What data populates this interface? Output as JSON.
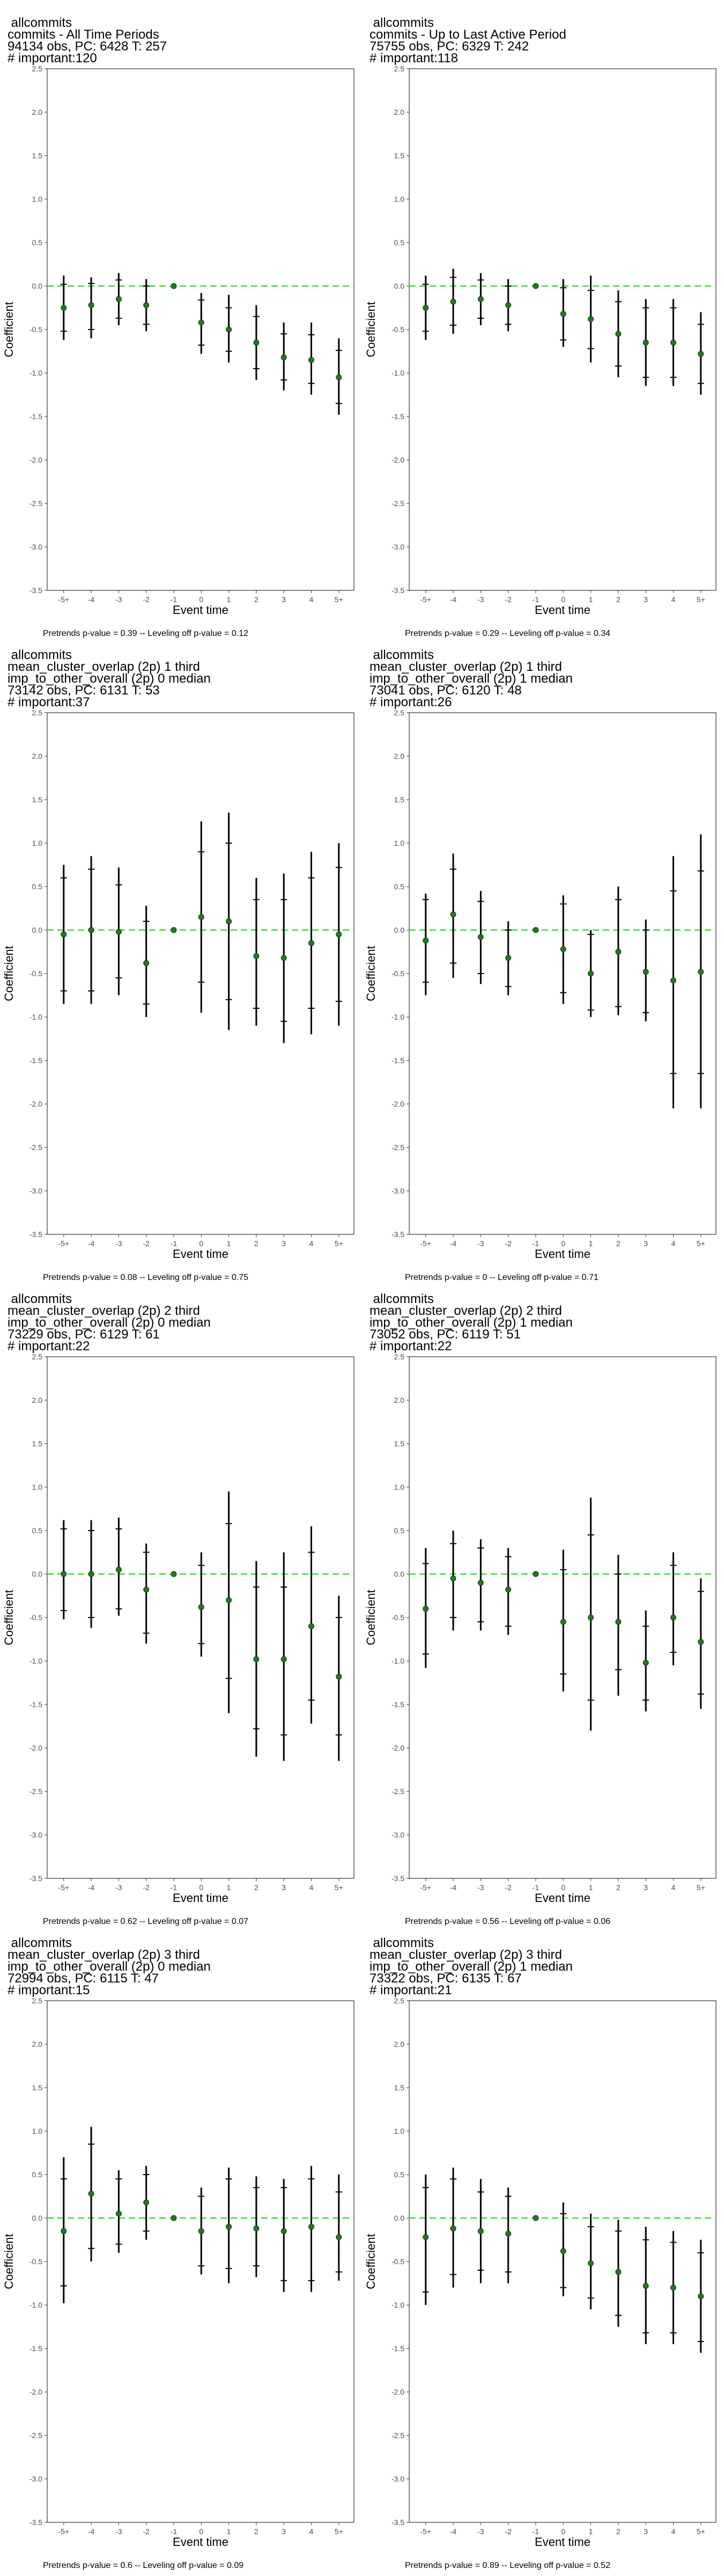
{
  "chart_data": [
    {
      "type": "scatter",
      "title_lines": [
        "allcommits",
        "commits - All Time Periods",
        "94134 obs, PC: 6428 T: 257",
        "# important:120"
      ],
      "xlabel": "Event time",
      "ylabel": "Coefficient",
      "categories": [
        "-5+",
        "-4",
        "-3",
        "-2",
        "-1",
        "0",
        "1",
        "2",
        "3",
        "4",
        "5+"
      ],
      "ylim": [
        -3.5,
        2.5
      ],
      "yticks": [
        "2.5",
        "2.0",
        "1.5",
        "1.0",
        "0.5",
        "0.0",
        "-0.5",
        "-1.0",
        "-1.5",
        "-2.0",
        "-2.5",
        "-3.0",
        "-3.5"
      ],
      "estimates": [
        -0.25,
        -0.22,
        -0.15,
        -0.22,
        0.0,
        -0.42,
        -0.5,
        -0.65,
        -0.82,
        -0.85,
        -1.05
      ],
      "ci95_low": [
        -0.62,
        -0.6,
        -0.45,
        -0.52,
        0.0,
        -0.78,
        -0.88,
        -1.08,
        -1.2,
        -1.25,
        -1.48
      ],
      "ci95_high": [
        0.12,
        0.1,
        0.15,
        0.08,
        0.0,
        -0.08,
        -0.1,
        -0.22,
        -0.42,
        -0.42,
        -0.6
      ],
      "ci90_low": [
        -0.52,
        -0.5,
        -0.37,
        -0.44,
        0.0,
        -0.68,
        -0.75,
        -0.95,
        -1.08,
        -1.12,
        -1.35
      ],
      "ci90_high": [
        0.02,
        0.03,
        0.07,
        0.0,
        0.0,
        -0.16,
        -0.25,
        -0.35,
        -0.55,
        -0.56,
        -0.74
      ],
      "reference_line": 0.0,
      "footnote": "Pretrends p-value = 0.39 -- Leveling off p-value = 0.12"
    },
    {
      "type": "scatter",
      "title_lines": [
        "allcommits",
        "commits - Up to Last Active Period",
        "75755 obs, PC: 6329 T: 242",
        "# important:118"
      ],
      "xlabel": "Event time",
      "ylabel": "Coefficient",
      "categories": [
        "-5+",
        "-4",
        "-3",
        "-2",
        "-1",
        "0",
        "1",
        "2",
        "3",
        "4",
        "5+"
      ],
      "ylim": [
        -3.5,
        2.5
      ],
      "yticks": [
        "2.5",
        "2.0",
        "1.5",
        "1.0",
        "0.5",
        "0.0",
        "-0.5",
        "-1.0",
        "-1.5",
        "-2.0",
        "-2.5",
        "-3.0",
        "-3.5"
      ],
      "estimates": [
        -0.25,
        -0.18,
        -0.15,
        -0.22,
        0.0,
        -0.32,
        -0.38,
        -0.55,
        -0.65,
        -0.65,
        -0.78
      ],
      "ci95_low": [
        -0.62,
        -0.55,
        -0.45,
        -0.52,
        0.0,
        -0.7,
        -0.88,
        -1.05,
        -1.15,
        -1.15,
        -1.25
      ],
      "ci95_high": [
        0.12,
        0.2,
        0.15,
        0.08,
        0.0,
        0.08,
        0.12,
        -0.05,
        -0.15,
        -0.15,
        -0.3
      ],
      "ci90_low": [
        -0.52,
        -0.45,
        -0.37,
        -0.44,
        0.0,
        -0.62,
        -0.72,
        -0.92,
        -1.05,
        -1.05,
        -1.12
      ],
      "ci90_high": [
        0.02,
        0.1,
        0.07,
        0.0,
        0.0,
        -0.02,
        -0.05,
        -0.18,
        -0.25,
        -0.25,
        -0.44
      ],
      "reference_line": 0.0,
      "footnote": "Pretrends p-value = 0.29 -- Leveling off p-value = 0.34"
    },
    {
      "type": "scatter",
      "title_lines": [
        "allcommits",
        "mean_cluster_overlap (2p) 1 third",
        "imp_to_other_overall (2p) 0 median",
        "73142 obs, PC: 6131 T: 53",
        "# important:37"
      ],
      "xlabel": "Event time",
      "ylabel": "Coefficient",
      "categories": [
        "-5+",
        "-4",
        "-3",
        "-2",
        "-1",
        "0",
        "1",
        "2",
        "3",
        "4",
        "5+"
      ],
      "ylim": [
        -3.5,
        2.5
      ],
      "yticks": [
        "2.5",
        "2.0",
        "1.5",
        "1.0",
        "0.5",
        "0.0",
        "-0.5",
        "-1.0",
        "-1.5",
        "-2.0",
        "-2.5",
        "-3.0",
        "-3.5"
      ],
      "estimates": [
        -0.05,
        0.0,
        -0.02,
        -0.38,
        0.0,
        0.15,
        0.1,
        -0.3,
        -0.32,
        -0.15,
        -0.05
      ],
      "ci95_low": [
        -0.85,
        -0.85,
        -0.75,
        -1.0,
        0.0,
        -0.95,
        -1.15,
        -1.1,
        -1.3,
        -1.2,
        -1.1
      ],
      "ci95_high": [
        0.75,
        0.85,
        0.72,
        0.28,
        0.0,
        1.25,
        1.35,
        0.6,
        0.65,
        0.9,
        1.0
      ],
      "ci90_low": [
        -0.7,
        -0.7,
        -0.55,
        -0.85,
        0.0,
        -0.6,
        -0.8,
        -0.9,
        -1.05,
        -0.9,
        -0.82
      ],
      "ci90_high": [
        0.6,
        0.7,
        0.52,
        0.1,
        0.0,
        0.9,
        1.0,
        0.35,
        0.35,
        0.6,
        0.72
      ],
      "reference_line": 0.0,
      "footnote": "Pretrends p-value = 0.08 -- Leveling off p-value = 0.75"
    },
    {
      "type": "scatter",
      "title_lines": [
        "allcommits",
        "mean_cluster_overlap (2p) 1 third",
        "imp_to_other_overall (2p) 1 median",
        "73041 obs, PC: 6120 T: 48",
        "# important:26"
      ],
      "xlabel": "Event time",
      "ylabel": "Coefficient",
      "categories": [
        "-5+",
        "-4",
        "-3",
        "-2",
        "-1",
        "0",
        "1",
        "2",
        "3",
        "4",
        "5+"
      ],
      "ylim": [
        -3.5,
        2.5
      ],
      "yticks": [
        "2.5",
        "2.0",
        "1.5",
        "1.0",
        "0.5",
        "0.0",
        "-0.5",
        "-1.0",
        "-1.5",
        "-2.0",
        "-2.5",
        "-3.0",
        "-3.5"
      ],
      "estimates": [
        -0.12,
        0.18,
        -0.08,
        -0.32,
        0.0,
        -0.22,
        -0.5,
        -0.25,
        -0.48,
        -0.58,
        -0.48
      ],
      "ci95_low": [
        -0.75,
        -0.55,
        -0.62,
        -0.75,
        0.0,
        -0.85,
        -1.0,
        -0.98,
        -1.05,
        -2.05,
        -2.05
      ],
      "ci95_high": [
        0.42,
        0.88,
        0.45,
        0.1,
        0.0,
        0.4,
        0.0,
        0.5,
        0.12,
        0.85,
        1.1
      ],
      "ci90_low": [
        -0.6,
        -0.38,
        -0.5,
        -0.65,
        0.0,
        -0.72,
        -0.92,
        -0.88,
        -0.95,
        -1.65,
        -1.65
      ],
      "ci90_high": [
        0.35,
        0.7,
        0.33,
        0.0,
        0.0,
        0.3,
        -0.05,
        0.35,
        0.0,
        0.45,
        0.68
      ],
      "reference_line": 0.0,
      "footnote": "Pretrends p-value = 0 -- Leveling off p-value = 0.71"
    },
    {
      "type": "scatter",
      "title_lines": [
        "allcommits",
        "mean_cluster_overlap (2p) 2 third",
        "imp_to_other_overall (2p) 0 median",
        "73229 obs, PC: 6129 T: 61",
        "# important:22"
      ],
      "xlabel": "Event time",
      "ylabel": "Coefficient",
      "categories": [
        "-5+",
        "-4",
        "-3",
        "-2",
        "-1",
        "0",
        "1",
        "2",
        "3",
        "4",
        "5+"
      ],
      "ylim": [
        -3.5,
        2.5
      ],
      "yticks": [
        "2.5",
        "2.0",
        "1.5",
        "1.0",
        "0.5",
        "0.0",
        "-0.5",
        "-1.0",
        "-1.5",
        "-2.0",
        "-2.5",
        "-3.0",
        "-3.5"
      ],
      "estimates": [
        0.0,
        0.0,
        0.05,
        -0.18,
        0.0,
        -0.38,
        -0.3,
        -0.98,
        -0.98,
        -0.6,
        -1.18
      ],
      "ci95_low": [
        -0.52,
        -0.62,
        -0.48,
        -0.8,
        0.0,
        -0.95,
        -1.6,
        -2.1,
        -2.15,
        -1.72,
        -2.15
      ],
      "ci95_high": [
        0.62,
        0.62,
        0.65,
        0.35,
        0.0,
        0.25,
        0.95,
        0.15,
        0.25,
        0.55,
        -0.25
      ],
      "ci90_low": [
        -0.42,
        -0.5,
        -0.4,
        -0.68,
        0.0,
        -0.8,
        -1.2,
        -1.78,
        -1.85,
        -1.45,
        -1.85
      ],
      "ci90_high": [
        0.52,
        0.5,
        0.52,
        0.25,
        0.0,
        0.1,
        0.58,
        -0.15,
        -0.15,
        0.25,
        -0.5
      ],
      "reference_line": 0.0,
      "footnote": "Pretrends p-value = 0.62 -- Leveling off p-value = 0.07"
    },
    {
      "type": "scatter",
      "title_lines": [
        "allcommits",
        "mean_cluster_overlap (2p) 2 third",
        "imp_to_other_overall (2p) 1 median",
        "73052 obs, PC: 6119 T: 51",
        "# important:22"
      ],
      "xlabel": "Event time",
      "ylabel": "Coefficient",
      "categories": [
        "-5+",
        "-4",
        "-3",
        "-2",
        "-1",
        "0",
        "1",
        "2",
        "3",
        "4",
        "5+"
      ],
      "ylim": [
        -3.5,
        2.5
      ],
      "yticks": [
        "2.5",
        "2.0",
        "1.5",
        "1.0",
        "0.5",
        "0.0",
        "-0.5",
        "-1.0",
        "-1.5",
        "-2.0",
        "-2.5",
        "-3.0",
        "-3.5"
      ],
      "estimates": [
        -0.4,
        -0.05,
        -0.1,
        -0.18,
        0.0,
        -0.55,
        -0.5,
        -0.55,
        -1.02,
        -0.5,
        -0.78
      ],
      "ci95_low": [
        -1.08,
        -0.65,
        -0.65,
        -0.7,
        0.0,
        -1.35,
        -1.8,
        -1.4,
        -1.58,
        -1.05,
        -1.55
      ],
      "ci95_high": [
        0.3,
        0.5,
        0.4,
        0.3,
        0.0,
        0.28,
        0.88,
        0.22,
        -0.42,
        0.25,
        -0.05
      ],
      "ci90_low": [
        -0.92,
        -0.5,
        -0.55,
        -0.6,
        0.0,
        -1.15,
        -1.45,
        -1.1,
        -1.45,
        -0.9,
        -1.38
      ],
      "ci90_high": [
        0.12,
        0.35,
        0.3,
        0.2,
        0.0,
        0.05,
        0.45,
        0.0,
        -0.6,
        0.1,
        -0.2
      ],
      "reference_line": 0.0,
      "footnote": "Pretrends p-value = 0.56 -- Leveling off p-value = 0.06"
    },
    {
      "type": "scatter",
      "title_lines": [
        "allcommits",
        "mean_cluster_overlap (2p) 3 third",
        "imp_to_other_overall (2p) 0 median",
        "72994 obs, PC: 6115 T: 47",
        "# important:15"
      ],
      "xlabel": "Event time",
      "ylabel": "Coefficient",
      "categories": [
        "-5+",
        "-4",
        "-3",
        "-2",
        "-1",
        "0",
        "1",
        "2",
        "3",
        "4",
        "5+"
      ],
      "ylim": [
        -3.5,
        2.5
      ],
      "yticks": [
        "2.5",
        "2.0",
        "1.5",
        "1.0",
        "0.5",
        "0.0",
        "-0.5",
        "-1.0",
        "-1.5",
        "-2.0",
        "-2.5",
        "-3.0",
        "-3.5"
      ],
      "estimates": [
        -0.15,
        0.28,
        0.05,
        0.18,
        0.0,
        -0.15,
        -0.1,
        -0.12,
        -0.15,
        -0.1,
        -0.22
      ],
      "ci95_low": [
        -0.98,
        -0.5,
        -0.4,
        -0.25,
        0.0,
        -0.65,
        -0.75,
        -0.68,
        -0.85,
        -0.85,
        -0.72
      ],
      "ci95_high": [
        0.7,
        1.05,
        0.55,
        0.6,
        0.0,
        0.35,
        0.58,
        0.48,
        0.45,
        0.6,
        0.5
      ],
      "ci90_low": [
        -0.78,
        -0.35,
        -0.3,
        -0.15,
        0.0,
        -0.55,
        -0.58,
        -0.55,
        -0.72,
        -0.72,
        -0.62
      ],
      "ci90_high": [
        0.45,
        0.85,
        0.45,
        0.5,
        0.0,
        0.25,
        0.45,
        0.35,
        0.35,
        0.45,
        0.3
      ],
      "reference_line": 0.0,
      "footnote": "Pretrends p-value = 0.6 -- Leveling off p-value = 0.09"
    },
    {
      "type": "scatter",
      "title_lines": [
        "allcommits",
        "mean_cluster_overlap (2p) 3 third",
        "imp_to_other_overall (2p) 1 median",
        "73322 obs, PC: 6135 T: 67",
        "# important:21"
      ],
      "xlabel": "Event time",
      "ylabel": "Coefficient",
      "categories": [
        "-5+",
        "-4",
        "-3",
        "-2",
        "-1",
        "0",
        "1",
        "2",
        "3",
        "4",
        "5+"
      ],
      "ylim": [
        -3.5,
        2.5
      ],
      "yticks": [
        "2.5",
        "2.0",
        "1.5",
        "1.0",
        "0.5",
        "0.0",
        "-0.5",
        "-1.0",
        "-1.5",
        "-2.0",
        "-2.5",
        "-3.0",
        "-3.5"
      ],
      "estimates": [
        -0.22,
        -0.12,
        -0.15,
        -0.18,
        0.0,
        -0.38,
        -0.52,
        -0.62,
        -0.78,
        -0.8,
        -0.9
      ],
      "ci95_low": [
        -1.0,
        -0.8,
        -0.75,
        -0.75,
        0.0,
        -0.9,
        -1.05,
        -1.25,
        -1.45,
        -1.45,
        -1.55
      ],
      "ci95_high": [
        0.5,
        0.58,
        0.45,
        0.35,
        0.0,
        0.18,
        0.05,
        -0.02,
        -0.1,
        -0.15,
        -0.25
      ],
      "ci90_low": [
        -0.85,
        -0.65,
        -0.6,
        -0.62,
        0.0,
        -0.8,
        -0.92,
        -1.12,
        -1.32,
        -1.32,
        -1.42
      ],
      "ci90_high": [
        0.35,
        0.45,
        0.3,
        0.25,
        0.0,
        0.05,
        -0.1,
        -0.15,
        -0.25,
        -0.28,
        -0.4
      ],
      "reference_line": 0.0,
      "footnote": "Pretrends p-value = 0.89 -- Leveling off p-value = 0.52"
    }
  ],
  "colors": {
    "point": "#1f7a1f",
    "reference_line": "#33e033",
    "errorbar": "#000000",
    "panel_border": "#333333",
    "tick_text": "#4d4d4d"
  }
}
